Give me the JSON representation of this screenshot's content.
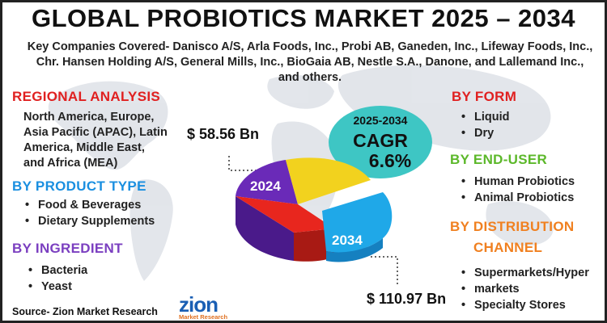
{
  "title": "GLOBAL PROBIOTICS MARKET 2025 – 2034",
  "companies": "Key Companies Covered- Danisco A/S, Arla Foods, Inc., Probi AB, Ganeden, Inc., Lifeway Foods, Inc., Chr. Hansen Holding A/S, General Mills, Inc., BioGaia AB, Nestle S.A., Danone, and Lallemand Inc., and others.",
  "regional": {
    "heading": "REGIONAL ANALYSIS",
    "lines": [
      "North America, Europe,",
      "Asia Pacific (APAC), Latin",
      "America, Middle East,",
      "and Africa (MEA)"
    ]
  },
  "product_type": {
    "heading": "BY PRODUCT TYPE",
    "items": [
      "Food & Beverages",
      "Dietary Supplements"
    ]
  },
  "ingredient": {
    "heading": "BY INGREDIENT",
    "items": [
      "Bacteria",
      "Yeast"
    ]
  },
  "form": {
    "heading": "BY FORM",
    "items": [
      "Liquid",
      "Dry"
    ]
  },
  "end_user": {
    "heading": "BY END-USER",
    "items": [
      "Human Probiotics",
      "Animal Probiotics"
    ]
  },
  "distribution": {
    "heading_line1": "BY DISTRIBUTION",
    "heading_line2": "CHANNEL",
    "items": [
      "Supermarkets/Hyper",
      "markets",
      "Specialty Stores"
    ]
  },
  "cagr": {
    "years": "2025-2034",
    "label": "CAGR",
    "value": "6.6%"
  },
  "market": {
    "value_2024": "$ 58.56 Bn",
    "value_2034": "$ 110.97 Bn",
    "label_2024": "2024",
    "label_2034": "2034"
  },
  "source": "Source- Zion Market Research",
  "logo": {
    "word": "zion",
    "sub": "Market Research"
  },
  "colors": {
    "red_heading": "#e02020",
    "blue_heading": "#1a8fe0",
    "purple_heading": "#7b3fc0",
    "green_heading": "#5cb82a",
    "orange_heading": "#f08020",
    "cagr_bubble": "#3ec6c4",
    "pie_yellow": "#f2d21e",
    "pie_purple": "#6a2ab8",
    "pie_red": "#e8261e",
    "pie_blue": "#1fa8e8"
  }
}
